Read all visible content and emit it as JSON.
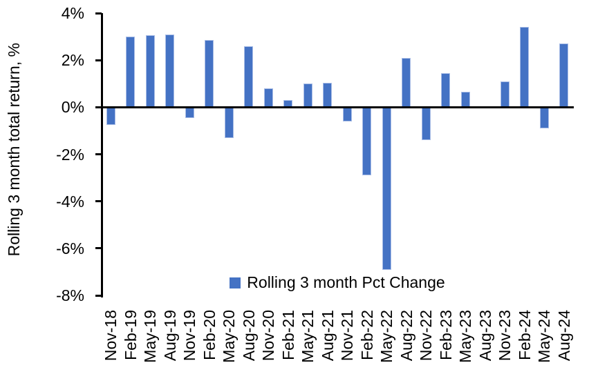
{
  "chart_data": {
    "type": "bar",
    "title": "",
    "xlabel": "",
    "ylabel": "Rolling 3 month total return, %",
    "categories": [
      "Nov-18",
      "Feb-19",
      "May-19",
      "Aug-19",
      "Nov-19",
      "Feb-20",
      "May-20",
      "Aug-20",
      "Nov-20",
      "Feb-21",
      "May-21",
      "Aug-21",
      "Nov-21",
      "Feb-22",
      "May-22",
      "Aug-22",
      "Nov-22",
      "Feb-23",
      "May-23",
      "Aug-23",
      "Nov-23",
      "Feb-24",
      "May-24",
      "Aug-24"
    ],
    "values": [
      -0.75,
      3.0,
      3.05,
      3.1,
      -0.45,
      2.85,
      -1.3,
      2.6,
      0.8,
      0.3,
      1.0,
      1.05,
      -0.6,
      -2.9,
      -6.9,
      2.1,
      -1.4,
      1.45,
      0.65,
      0.0,
      1.1,
      3.4,
      -0.9,
      2.7
    ],
    "ylim": [
      -8,
      4
    ],
    "yticks": [
      4,
      2,
      0,
      -2,
      -4,
      -6,
      -8
    ],
    "ytick_labels": [
      "4%",
      "2%",
      "0%",
      "-2%",
      "-4%",
      "-6%",
      "-8%"
    ],
    "grid": false,
    "legend": {
      "label": "Rolling 3 month Pct Change",
      "position": "bottom-center-inside-plot"
    },
    "colors": {
      "bar_fill": "#4472C4",
      "bar_edge": "#a9bde6",
      "axis": "#000000",
      "text": "#000000",
      "background": "#ffffff"
    }
  }
}
